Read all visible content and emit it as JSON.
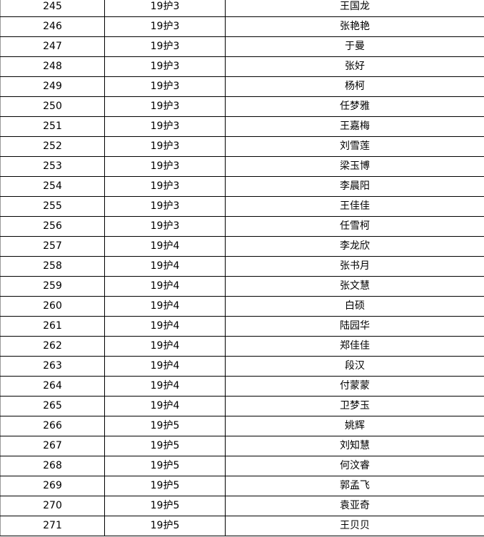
{
  "rows": [
    [
      "245",
      "19护3",
      "王国龙"
    ],
    [
      "246",
      "19护3",
      "张艳艳"
    ],
    [
      "247",
      "19护3",
      "于曼"
    ],
    [
      "248",
      "19护3",
      "张好"
    ],
    [
      "249",
      "19护3",
      "杨柯"
    ],
    [
      "250",
      "19护3",
      "任梦雅"
    ],
    [
      "251",
      "19护3",
      "王嘉梅"
    ],
    [
      "252",
      "19护3",
      "刘雪莲"
    ],
    [
      "253",
      "19护3",
      "梁玉博"
    ],
    [
      "254",
      "19护3",
      "李晨阳"
    ],
    [
      "255",
      "19护3",
      "王佳佳"
    ],
    [
      "256",
      "19护3",
      "任雪柯"
    ],
    [
      "257",
      "19护4",
      "李龙欣"
    ],
    [
      "258",
      "19护4",
      "张书月"
    ],
    [
      "259",
      "19护4",
      "张文慧"
    ],
    [
      "260",
      "19护4",
      "白硕"
    ],
    [
      "261",
      "19护4",
      "陆园华"
    ],
    [
      "262",
      "19护4",
      "郑佳佳"
    ],
    [
      "263",
      "19护4",
      "段汉"
    ],
    [
      "264",
      "19护4",
      "付蒙蒙"
    ],
    [
      "265",
      "19护4",
      "卫梦玉"
    ],
    [
      "266",
      "19护5",
      "姚辉"
    ],
    [
      "267",
      "19护5",
      "刘知慧"
    ],
    [
      "268",
      "19护5",
      "何汶睿"
    ],
    [
      "269",
      "19护5",
      "郭孟飞"
    ],
    [
      "270",
      "19护5",
      "袁亚奇"
    ],
    [
      "271",
      "19护5",
      "王贝贝"
    ]
  ]
}
